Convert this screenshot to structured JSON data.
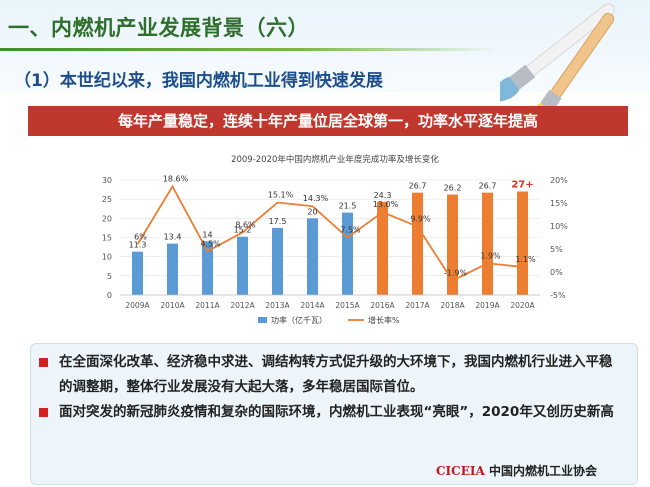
{
  "header": {
    "title": "一、内燃机产业发展背景（六）",
    "subtitle": "（1）本世纪以来，我国内燃机工业得到快速发展"
  },
  "banner": {
    "text": "每年产量稳定，连续十年产量位居全球第一，功率水平逐年提高"
  },
  "chart_data": {
    "type": "bar",
    "title": "2009-2020年中国内燃机产业年度完成功率及增长变化",
    "categories": [
      "2009A",
      "2010A",
      "2011A",
      "2012A",
      "2013A",
      "2014A",
      "2015A",
      "2016A",
      "2017A",
      "2018A",
      "2019A",
      "2020A"
    ],
    "y_left": {
      "lim": [
        0,
        30
      ],
      "ticks": [
        "0",
        "5",
        "10",
        "15",
        "20",
        "25",
        "30"
      ]
    },
    "y_right": {
      "lim": [
        -5,
        20
      ],
      "ticks": [
        "-5%",
        "0%",
        "5%",
        "10%",
        "15%",
        "20%"
      ]
    },
    "series": [
      {
        "name": "功率（亿千瓦）",
        "type": "bar",
        "values": [
          11.3,
          13.4,
          14,
          15.2,
          17.5,
          20,
          21.5,
          24.3,
          26.7,
          26.2,
          26.7,
          27
        ],
        "labels": [
          "11.3",
          "13.4",
          "14",
          "15.2",
          "17.5",
          "20",
          "21.5",
          "24.3",
          "26.7",
          "26.2",
          "26.7",
          "27+"
        ],
        "colors": [
          "#5b9bd5",
          "#5b9bd5",
          "#5b9bd5",
          "#5b9bd5",
          "#5b9bd5",
          "#5b9bd5",
          "#5b9bd5",
          "#ed7d31",
          "#ed7d31",
          "#ed7d31",
          "#ed7d31",
          "#ed7d31"
        ]
      },
      {
        "name": "增长率%",
        "type": "line",
        "color": "#ed7d31",
        "values": [
          6,
          18.6,
          4.5,
          8.6,
          15.1,
          14.3,
          7.5,
          13.0,
          9.9,
          -1.9,
          1.9,
          1.1
        ],
        "labels": [
          "6%",
          "18.6%",
          "4.5%",
          "8.6%",
          "15.1%",
          "14.3%",
          "7.5%",
          "13.0%",
          "9.9%",
          "-1.9%",
          "1.9%",
          "1.1%"
        ]
      }
    ],
    "legend": "bottom"
  },
  "bullets": [
    "在全面深化改革、经济稳中求进、调结构转方式促升级的大环境下，我国内燃机行业进入平稳的调整期，整体行业发展没有大起大落，多年稳居国际首位。",
    "面对突发的新冠肺炎疫情和复杂的国际环境，内燃机工业表现“亮眼”，2020年又创历史新高"
  ],
  "footer": {
    "brand": "CICEIA",
    "org": "中国内燃机工业协会"
  },
  "colors": {
    "title_green": "#2f6f2c",
    "subtitle_blue": "#1c4e8c",
    "banner_red": "#c0372e",
    "bar_blue": "#5b9bd5",
    "bar_orange": "#ed7d31"
  }
}
